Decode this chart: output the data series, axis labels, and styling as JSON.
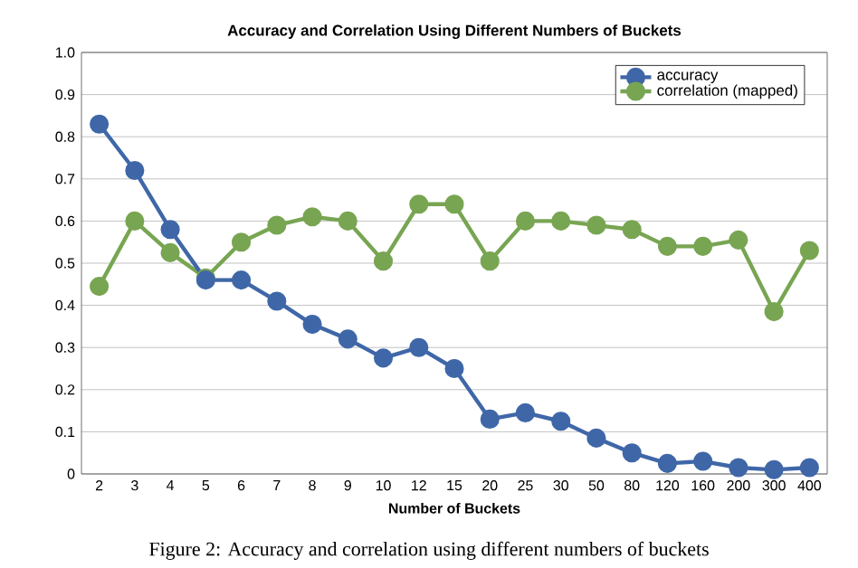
{
  "chart_data": {
    "type": "line",
    "title": "Accuracy and Correlation Using Different Numbers of Buckets",
    "xlabel": "Number of Buckets",
    "categories": [
      "2",
      "3",
      "4",
      "5",
      "6",
      "7",
      "8",
      "9",
      "10",
      "12",
      "15",
      "20",
      "25",
      "30",
      "50",
      "80",
      "120",
      "160",
      "200",
      "300",
      "400"
    ],
    "series": [
      {
        "name": "accuracy",
        "color": "#3f67a8",
        "values": [
          0.83,
          0.72,
          0.58,
          0.46,
          0.46,
          0.41,
          0.355,
          0.32,
          0.275,
          0.3,
          0.25,
          0.13,
          0.145,
          0.125,
          0.085,
          0.05,
          0.025,
          0.03,
          0.015,
          0.01,
          0.015
        ]
      },
      {
        "name": "correlation (mapped)",
        "color": "#78a552",
        "values": [
          0.445,
          0.6,
          0.525,
          0.465,
          0.55,
          0.59,
          0.61,
          0.6,
          0.505,
          0.64,
          0.64,
          0.505,
          0.6,
          0.6,
          0.59,
          0.58,
          0.54,
          0.54,
          0.555,
          0.385,
          0.53
        ]
      }
    ],
    "ylim": [
      0,
      1
    ],
    "yticks": [
      0,
      0.1,
      0.2,
      0.3,
      0.4,
      0.5,
      0.6,
      0.7,
      0.8,
      0.9,
      {
        "value": 1,
        "label": "1.0"
      }
    ],
    "grid": "y",
    "legend": "top right",
    "marker": "circle",
    "line_style": "solid",
    "annotations": [
      "Figure 2: Accuracy and correlation using different numbers of buckets"
    ]
  }
}
